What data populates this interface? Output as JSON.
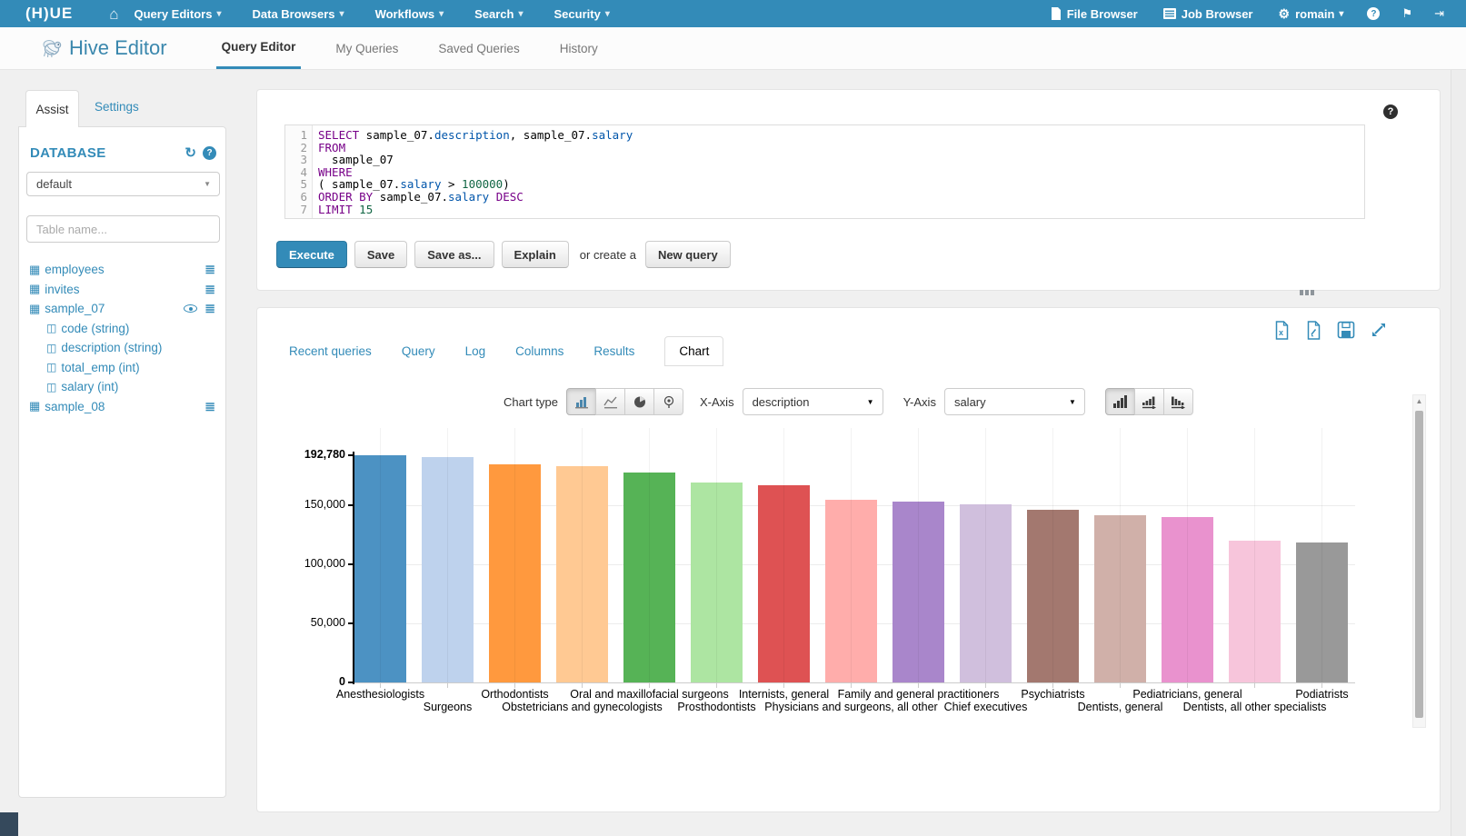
{
  "colors": {
    "accent": "#338bb8",
    "navbar_bg": "#338bb8"
  },
  "icons": {
    "home": "⌂",
    "caret": "▾",
    "select_caret": "▼",
    "gears": "⚙",
    "flag": "⚑",
    "signout": "⇥",
    "refresh": "↻",
    "question_mark": "?",
    "table": "▦",
    "column": "◫",
    "list": "≣",
    "scroll_up_arrow": "▲"
  },
  "navbar": {
    "logo": "(H)UE",
    "menus": [
      {
        "label": "Query Editors"
      },
      {
        "label": "Data Browsers"
      },
      {
        "label": "Workflows"
      },
      {
        "label": "Search"
      },
      {
        "label": "Security"
      }
    ],
    "file_browser": "File Browser",
    "job_browser": "Job Browser",
    "user": "romain"
  },
  "subheader": {
    "app_title": "Hive Editor",
    "tabs": [
      {
        "label": "Query Editor",
        "active": true
      },
      {
        "label": "My Queries",
        "active": false
      },
      {
        "label": "Saved Queries",
        "active": false
      },
      {
        "label": "History",
        "active": false
      }
    ]
  },
  "sidebar": {
    "tabs": [
      {
        "label": "Assist",
        "active": true
      },
      {
        "label": "Settings",
        "active": false
      }
    ],
    "database_label": "DATABASE",
    "database_value": "default",
    "table_filter_placeholder": "Table name...",
    "tables": [
      {
        "name": "employees",
        "eye": false,
        "columns": []
      },
      {
        "name": "invites",
        "eye": false,
        "columns": []
      },
      {
        "name": "sample_07",
        "eye": true,
        "columns": [
          "code (string)",
          "description (string)",
          "total_emp (int)",
          "salary (int)"
        ]
      },
      {
        "name": "sample_08",
        "eye": false,
        "columns": []
      }
    ]
  },
  "editor": {
    "lines": [
      [
        [
          "kw",
          "SELECT"
        ],
        [
          "pl",
          " sample_07."
        ],
        [
          "prop",
          "description"
        ],
        [
          "pl",
          ", sample_07."
        ],
        [
          "prop",
          "salary"
        ]
      ],
      [
        [
          "kw",
          "FROM"
        ]
      ],
      [
        [
          "pl",
          "  sample_07"
        ]
      ],
      [
        [
          "kw",
          "WHERE"
        ]
      ],
      [
        [
          "pl",
          "( sample_07."
        ],
        [
          "prop",
          "salary"
        ],
        [
          "pl",
          " > "
        ],
        [
          "num",
          "100000"
        ],
        [
          "pl",
          ")"
        ]
      ],
      [
        [
          "kw",
          "ORDER BY"
        ],
        [
          "pl",
          " sample_07."
        ],
        [
          "prop",
          "salary"
        ],
        [
          "pl",
          " "
        ],
        [
          "kw",
          "DESC"
        ]
      ],
      [
        [
          "kw",
          "LIMIT"
        ],
        [
          "pl",
          " "
        ],
        [
          "num",
          "15"
        ]
      ]
    ]
  },
  "actions": {
    "execute": "Execute",
    "save": "Save",
    "save_as": "Save as...",
    "explain": "Explain",
    "or_create": "or create a",
    "new_query": "New query"
  },
  "results": {
    "tabs": [
      {
        "label": "Recent queries",
        "active": false
      },
      {
        "label": "Query",
        "active": false
      },
      {
        "label": "Log",
        "active": false
      },
      {
        "label": "Columns",
        "active": false
      },
      {
        "label": "Results",
        "active": false
      },
      {
        "label": "Chart",
        "active": true
      }
    ],
    "controls": {
      "chart_type_label": "Chart type",
      "x_axis_label": "X-Axis",
      "x_axis_value": "description",
      "y_axis_label": "Y-Axis",
      "y_axis_value": "salary"
    }
  },
  "chart_data": {
    "type": "bar",
    "title": "",
    "xlabel": "description",
    "ylabel": "salary",
    "ymax": 192780,
    "grid": true,
    "legend": "none",
    "yticks": [
      {
        "value": 192780,
        "label": "192,780",
        "bold": true
      },
      {
        "value": 150000,
        "label": "150,000",
        "bold": false
      },
      {
        "value": 100000,
        "label": "100,000",
        "bold": false
      },
      {
        "value": 50000,
        "label": "50,000",
        "bold": false
      },
      {
        "value": 0,
        "label": "0",
        "bold": true
      }
    ],
    "categories": [
      "Anesthesiologists",
      "Surgeons",
      "Orthodontists",
      "Obstetricians and gynecologists",
      "Oral and maxillofacial surgeons",
      "Prosthodontists",
      "Internists, general",
      "Physicians and surgeons, all other",
      "Family and general practitioners",
      "Chief executives",
      "Psychiatrists",
      "Dentists, general",
      "Pediatricians, general",
      "Dentists, all other specialists",
      "Podiatrists"
    ],
    "values": [
      192780,
      191410,
      185340,
      183600,
      178440,
      169360,
      167270,
      155150,
      153640,
      151370,
      146150,
      142070,
      140690,
      120360,
      118570
    ],
    "colors": [
      "#4c92c3",
      "#bed2ed",
      "#ff993e",
      "#ffc993",
      "#56b356",
      "#ade5a2",
      "#de5253",
      "#ffadab",
      "#a986cb",
      "#d0bfdd",
      "#a3786f",
      "#d0b0a9",
      "#e992ce",
      "#f7c5db",
      "#999999"
    ]
  }
}
